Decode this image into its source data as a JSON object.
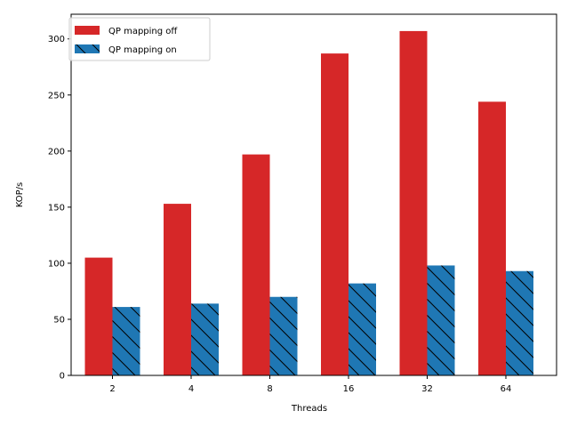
{
  "chart_data": {
    "type": "bar",
    "categories": [
      "2",
      "4",
      "8",
      "16",
      "32",
      "64"
    ],
    "series": [
      {
        "name": "QP mapping off",
        "values": [
          105,
          153,
          197,
          287,
          307,
          244
        ],
        "color": "#d62728",
        "hatch": false
      },
      {
        "name": "QP mapping on",
        "values": [
          61,
          64,
          70,
          82,
          98,
          93
        ],
        "color": "#1f77b4",
        "hatch": true
      }
    ],
    "xlabel": "Threads",
    "ylabel": "KOP/s",
    "ylim": [
      0,
      322
    ],
    "yticks": [
      0,
      50,
      100,
      150,
      200,
      250,
      300
    ],
    "grid": false,
    "legend_position": "top-left"
  }
}
